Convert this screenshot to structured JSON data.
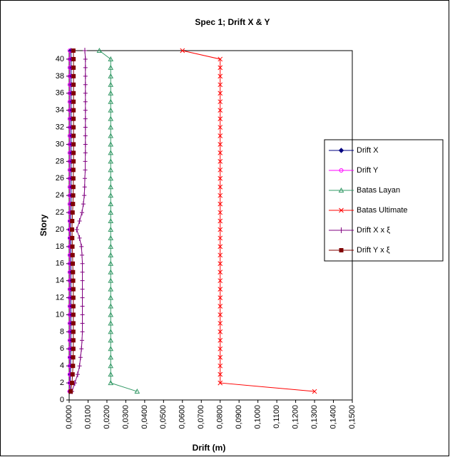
{
  "chart_data": {
    "type": "line",
    "title": "Spec 1; Drift X & Y",
    "x_label": "Drift (m)",
    "y_label": "Story",
    "y": [
      1,
      2,
      3,
      4,
      5,
      6,
      7,
      8,
      9,
      10,
      11,
      12,
      13,
      14,
      15,
      16,
      17,
      18,
      19,
      20,
      21,
      22,
      23,
      24,
      25,
      26,
      27,
      28,
      29,
      30,
      31,
      32,
      33,
      34,
      35,
      36,
      37,
      38,
      39,
      40,
      41
    ],
    "series": [
      {
        "name": "Drift X",
        "color": "#000080",
        "marker": "diamond",
        "values": [
          0.0004,
          0.0006,
          0.0007,
          0.0008,
          0.0008,
          0.0009,
          0.0009,
          0.0009,
          0.0009,
          0.0009,
          0.0009,
          0.0009,
          0.0009,
          0.0009,
          0.0009,
          0.0009,
          0.0009,
          0.0009,
          0.0008,
          0.0006,
          0.0008,
          0.0009,
          0.001,
          0.001,
          0.001,
          0.001,
          0.001,
          0.001,
          0.001,
          0.001,
          0.001,
          0.001,
          0.001,
          0.001,
          0.001,
          0.001,
          0.001,
          0.001,
          0.001,
          0.001,
          0.0009
        ]
      },
      {
        "name": "Drift Y",
        "color": "#ff00ff",
        "marker": "circle",
        "values": [
          0.0002,
          0.0003,
          0.0003,
          0.0003,
          0.0003,
          0.0003,
          0.0003,
          0.0003,
          0.0003,
          0.0003,
          0.0003,
          0.0003,
          0.0003,
          0.0003,
          0.0003,
          0.0003,
          0.0003,
          0.0003,
          0.0003,
          0.0002,
          0.0003,
          0.0003,
          0.0003,
          0.0003,
          0.0003,
          0.0003,
          0.0003,
          0.0003,
          0.0003,
          0.0003,
          0.0003,
          0.0003,
          0.0003,
          0.0003,
          0.0003,
          0.0003,
          0.0003,
          0.0003,
          0.0003,
          0.0003,
          0.0003
        ]
      },
      {
        "name": "Batas Layan",
        "color": "#339966",
        "marker": "triangle",
        "values": [
          0.036,
          0.022,
          0.022,
          0.022,
          0.022,
          0.022,
          0.022,
          0.022,
          0.022,
          0.022,
          0.022,
          0.022,
          0.022,
          0.022,
          0.022,
          0.022,
          0.022,
          0.022,
          0.022,
          0.022,
          0.022,
          0.022,
          0.022,
          0.022,
          0.022,
          0.022,
          0.022,
          0.022,
          0.022,
          0.022,
          0.022,
          0.022,
          0.022,
          0.022,
          0.022,
          0.022,
          0.022,
          0.022,
          0.022,
          0.022,
          0.016
        ]
      },
      {
        "name": "Batas Ultimate",
        "color": "#ff0000",
        "marker": "x",
        "values": [
          0.13,
          0.08,
          0.08,
          0.08,
          0.08,
          0.08,
          0.08,
          0.08,
          0.08,
          0.08,
          0.08,
          0.08,
          0.08,
          0.08,
          0.08,
          0.08,
          0.08,
          0.08,
          0.08,
          0.08,
          0.08,
          0.08,
          0.08,
          0.08,
          0.08,
          0.08,
          0.08,
          0.08,
          0.08,
          0.08,
          0.08,
          0.08,
          0.08,
          0.08,
          0.08,
          0.08,
          0.08,
          0.08,
          0.08,
          0.08,
          0.06
        ]
      },
      {
        "name": "Drift X x ξ",
        "color": "#800080",
        "marker": "plus",
        "values": [
          0.0015,
          0.003,
          0.0045,
          0.0055,
          0.006,
          0.0065,
          0.0068,
          0.007,
          0.007,
          0.007,
          0.007,
          0.007,
          0.007,
          0.007,
          0.007,
          0.007,
          0.0068,
          0.0065,
          0.0055,
          0.004,
          0.0055,
          0.0068,
          0.0075,
          0.008,
          0.0082,
          0.0083,
          0.0085,
          0.0085,
          0.0086,
          0.0086,
          0.0086,
          0.0086,
          0.0086,
          0.0086,
          0.0086,
          0.0086,
          0.0086,
          0.0086,
          0.0086,
          0.0086,
          0.0083
        ]
      },
      {
        "name": "Drift Y x ξ",
        "color": "#800000",
        "marker": "square",
        "values": [
          0.0008,
          0.0015,
          0.0018,
          0.002,
          0.0021,
          0.0022,
          0.0022,
          0.0022,
          0.0022,
          0.0022,
          0.0022,
          0.0022,
          0.0022,
          0.0021,
          0.002,
          0.0019,
          0.0018,
          0.0017,
          0.0016,
          0.0015,
          0.0016,
          0.0018,
          0.002,
          0.0021,
          0.0022,
          0.0022,
          0.0022,
          0.0023,
          0.0023,
          0.0023,
          0.0023,
          0.0023,
          0.0023,
          0.0023,
          0.0023,
          0.0023,
          0.0023,
          0.0023,
          0.0023,
          0.0023,
          0.0022
        ]
      }
    ],
    "xlim": [
      0,
      0.15
    ],
    "xticks": [
      {
        "value": 0,
        "label": "0,0000"
      },
      {
        "value": 0.01,
        "label": "0,0100"
      },
      {
        "value": 0.02,
        "label": "0,0200"
      },
      {
        "value": 0.03,
        "label": "0,0300"
      },
      {
        "value": 0.04,
        "label": "0,0400"
      },
      {
        "value": 0.05,
        "label": "0,0500"
      },
      {
        "value": 0.06,
        "label": "0,0600"
      },
      {
        "value": 0.07,
        "label": "0,0700"
      },
      {
        "value": 0.08,
        "label": "0,0800"
      },
      {
        "value": 0.09,
        "label": "0,0900"
      },
      {
        "value": 0.1,
        "label": "0,1000"
      },
      {
        "value": 0.11,
        "label": "0,1100"
      },
      {
        "value": 0.12,
        "label": "0,1200"
      },
      {
        "value": 0.13,
        "label": "0,1300"
      },
      {
        "value": 0.14,
        "label": "0,1400"
      },
      {
        "value": 0.15,
        "label": "0,1500"
      }
    ],
    "ylim": [
      0,
      41
    ],
    "yticks": [
      0,
      2,
      4,
      6,
      8,
      10,
      12,
      14,
      16,
      18,
      20,
      22,
      24,
      26,
      28,
      30,
      32,
      34,
      36,
      38,
      40
    ],
    "grid": false,
    "legend": "right"
  }
}
